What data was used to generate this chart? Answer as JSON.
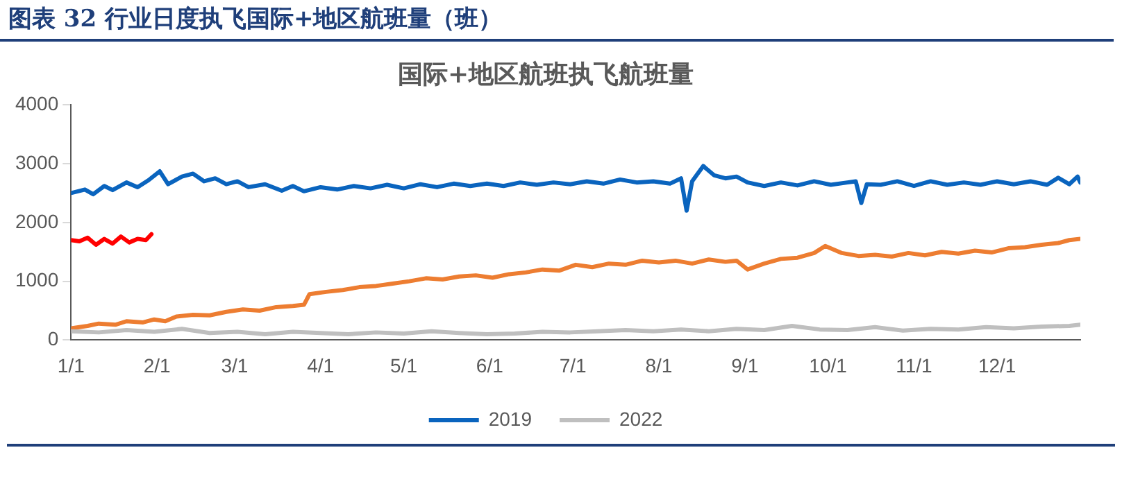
{
  "chart_data": {
    "type": "line",
    "subtitle": "图表 32 行业日度执飞国际+地区航班量（班）",
    "title": "国际+地区航班执飞航班量",
    "xlim": [
      "--01-01",
      "--12-31"
    ],
    "xticks": [
      {
        "value": "--01-01",
        "label": "1/1"
      },
      {
        "value": "--02-01",
        "label": "2/1"
      },
      {
        "value": "--03-01",
        "label": "3/1"
      },
      {
        "value": "--04-01",
        "label": "4/1"
      },
      {
        "value": "--05-01",
        "label": "5/1"
      },
      {
        "value": "--06-01",
        "label": "6/1"
      },
      {
        "value": "--07-01",
        "label": "7/1"
      },
      {
        "value": "--08-01",
        "label": "8/1"
      },
      {
        "value": "--09-01",
        "label": "9/1"
      },
      {
        "value": "--10-01",
        "label": "10/1"
      },
      {
        "value": "--11-01",
        "label": "11/1"
      },
      {
        "value": "--12-01",
        "label": "12/1"
      }
    ],
    "ylim": [
      0,
      4000
    ],
    "yticks": [
      0,
      1000,
      2000,
      3000,
      4000
    ],
    "grid": false,
    "legend": "bottom",
    "marker": "none",
    "line_style": "solid",
    "series": [
      {
        "name": "2019",
        "color": "#0a64be",
        "x": [
          "--01-01",
          "--01-06",
          "--01-09",
          "--01-13",
          "--01-16",
          "--01-21",
          "--01-25",
          "--01-29",
          "--02-02",
          "--02-05",
          "--02-10",
          "--02-14",
          "--02-18",
          "--02-22",
          "--02-26",
          "--03-02",
          "--03-06",
          "--03-12",
          "--03-18",
          "--03-22",
          "--03-26",
          "--04-01",
          "--04-07",
          "--04-13",
          "--04-19",
          "--04-25",
          "--05-01",
          "--05-07",
          "--05-13",
          "--05-19",
          "--05-25",
          "--05-31",
          "--06-06",
          "--06-12",
          "--06-18",
          "--06-24",
          "--06-30",
          "--07-06",
          "--07-12",
          "--07-18",
          "--07-24",
          "--07-30",
          "--08-05",
          "--08-09",
          "--08-11",
          "--08-13",
          "--08-17",
          "--08-21",
          "--08-25",
          "--08-29",
          "--09-02",
          "--09-08",
          "--09-14",
          "--09-20",
          "--09-26",
          "--10-02",
          "--10-08",
          "--10-11",
          "--10-13",
          "--10-15",
          "--10-20",
          "--10-26",
          "--11-01",
          "--11-07",
          "--11-13",
          "--11-19",
          "--11-25",
          "--12-01",
          "--12-07",
          "--12-13",
          "--12-19",
          "--12-23",
          "--12-27",
          "--12-30",
          "--12-31"
        ],
        "values": [
          2500,
          2560,
          2480,
          2620,
          2550,
          2680,
          2600,
          2720,
          2870,
          2650,
          2780,
          2830,
          2700,
          2750,
          2650,
          2700,
          2600,
          2650,
          2540,
          2620,
          2530,
          2600,
          2560,
          2620,
          2580,
          2640,
          2580,
          2650,
          2600,
          2660,
          2620,
          2660,
          2620,
          2680,
          2640,
          2680,
          2650,
          2700,
          2660,
          2730,
          2680,
          2700,
          2660,
          2750,
          2200,
          2700,
          2960,
          2800,
          2750,
          2780,
          2680,
          2620,
          2680,
          2630,
          2700,
          2640,
          2680,
          2700,
          2330,
          2650,
          2640,
          2700,
          2620,
          2700,
          2640,
          2680,
          2640,
          2700,
          2650,
          2700,
          2640,
          2760,
          2650,
          2780,
          2680
        ]
      },
      {
        "name": "2022",
        "color": "#bfbfbf",
        "x": [
          "--01-01",
          "--01-11",
          "--01-21",
          "--01-31",
          "--02-10",
          "--02-20",
          "--03-02",
          "--03-12",
          "--03-22",
          "--04-01",
          "--04-11",
          "--04-21",
          "--05-01",
          "--05-11",
          "--05-21",
          "--05-31",
          "--06-10",
          "--06-20",
          "--06-30",
          "--07-10",
          "--07-20",
          "--07-30",
          "--08-09",
          "--08-19",
          "--08-29",
          "--09-08",
          "--09-18",
          "--09-28",
          "--10-08",
          "--10-18",
          "--10-28",
          "--11-07",
          "--11-17",
          "--11-27",
          "--12-07",
          "--12-17",
          "--12-27",
          "--12-31"
        ],
        "values": [
          150,
          130,
          170,
          140,
          190,
          120,
          140,
          100,
          140,
          120,
          100,
          130,
          110,
          150,
          120,
          100,
          110,
          140,
          130,
          150,
          170,
          150,
          180,
          150,
          190,
          170,
          240,
          180,
          170,
          220,
          160,
          190,
          180,
          220,
          200,
          230,
          240,
          260
        ]
      },
      {
        "color": "#ed7d31",
        "x": [
          "--01-01",
          "--01-07",
          "--01-11",
          "--01-17",
          "--01-21",
          "--01-27",
          "--01-31",
          "--02-04",
          "--02-08",
          "--02-14",
          "--02-20",
          "--02-26",
          "--03-04",
          "--03-10",
          "--03-16",
          "--03-22",
          "--03-26",
          "--03-28",
          "--04-03",
          "--04-09",
          "--04-15",
          "--04-21",
          "--04-27",
          "--05-03",
          "--05-09",
          "--05-15",
          "--05-21",
          "--05-27",
          "--06-02",
          "--06-08",
          "--06-14",
          "--06-20",
          "--06-26",
          "--07-02",
          "--07-08",
          "--07-14",
          "--07-20",
          "--07-26",
          "--08-01",
          "--08-07",
          "--08-13",
          "--08-19",
          "--08-25",
          "--08-29",
          "--09-02",
          "--09-08",
          "--09-14",
          "--09-20",
          "--09-26",
          "--09-30",
          "--10-06",
          "--10-12",
          "--10-18",
          "--10-24",
          "--10-30",
          "--11-05",
          "--11-11",
          "--11-17",
          "--11-23",
          "--11-29",
          "--12-05",
          "--12-11",
          "--12-17",
          "--12-23",
          "--12-27",
          "--12-31"
        ],
        "values": [
          200,
          240,
          280,
          260,
          320,
          300,
          350,
          320,
          400,
          430,
          420,
          480,
          520,
          500,
          560,
          580,
          600,
          780,
          820,
          850,
          900,
          920,
          960,
          1000,
          1050,
          1030,
          1080,
          1100,
          1060,
          1120,
          1150,
          1200,
          1180,
          1280,
          1240,
          1300,
          1280,
          1350,
          1320,
          1350,
          1300,
          1370,
          1330,
          1350,
          1200,
          1300,
          1380,
          1400,
          1480,
          1600,
          1480,
          1430,
          1450,
          1420,
          1480,
          1440,
          1500,
          1470,
          1520,
          1490,
          1560,
          1580,
          1620,
          1650,
          1700,
          1720
        ]
      },
      {
        "color": "#ff0000",
        "x": [
          "--01-01",
          "--01-04",
          "--01-07",
          "--01-10",
          "--01-13",
          "--01-16",
          "--01-19",
          "--01-22",
          "--01-25",
          "--01-28",
          "--01-30"
        ],
        "values": [
          1700,
          1680,
          1740,
          1620,
          1720,
          1640,
          1760,
          1660,
          1720,
          1700,
          1800
        ]
      }
    ]
  }
}
